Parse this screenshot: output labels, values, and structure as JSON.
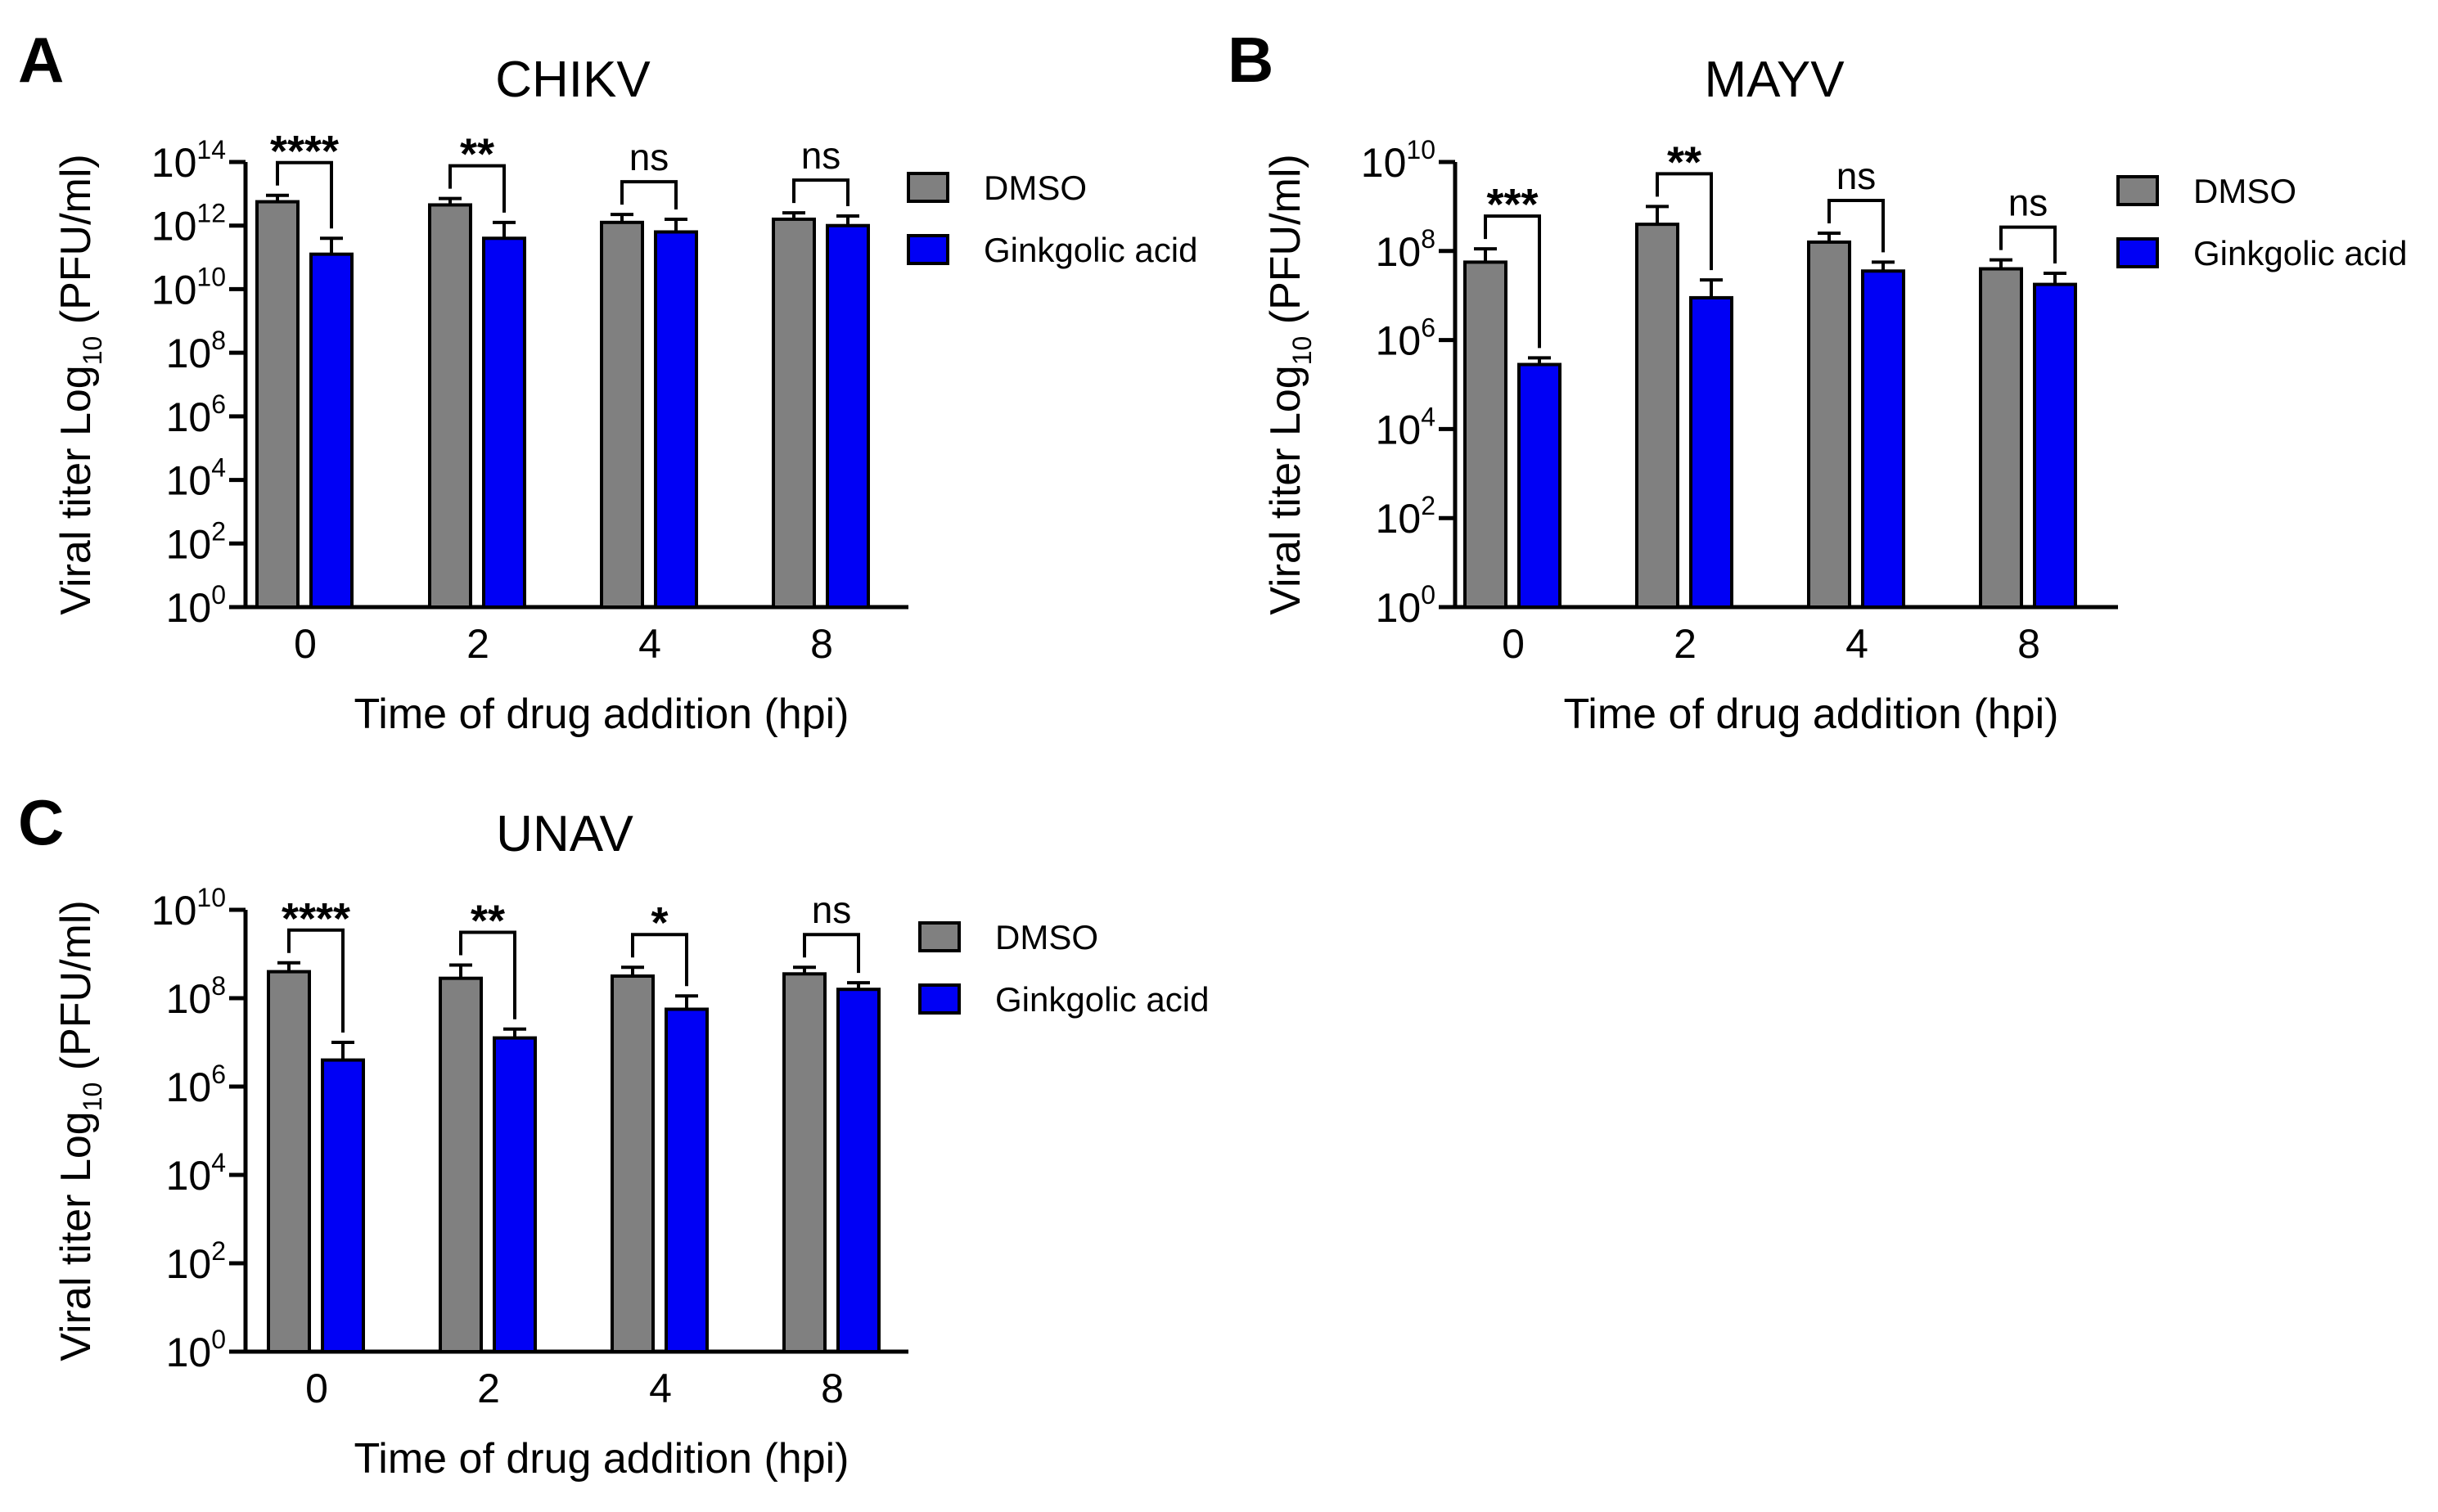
{
  "colors": {
    "dmso": "#808080",
    "ginkgolic": "#0000f5",
    "axis": "#000000"
  },
  "legend": {
    "dmso": "DMSO",
    "ginkgolic": "Ginkgolic acid"
  },
  "chart_data": [
    {
      "panel": "A",
      "title": "CHIKV",
      "type": "bar",
      "xlabel": "Time of drug addition (hpi)",
      "ylabel_main": "Viral titer Log",
      "ylabel_sub": "10",
      "ylabel_unit": " (PFU/ml)",
      "yscale": "log10",
      "ylim_exp": [
        0,
        14
      ],
      "yticks_exp": [
        0,
        2,
        4,
        6,
        8,
        10,
        12,
        14
      ],
      "categories": [
        "0",
        "2",
        "4",
        "8"
      ],
      "series": [
        {
          "name": "DMSO",
          "log_values": [
            12.75,
            12.65,
            12.1,
            12.2
          ],
          "log_err": [
            0.2,
            0.2,
            0.25,
            0.2
          ]
        },
        {
          "name": "Ginkgolic acid",
          "log_values": [
            11.1,
            11.6,
            11.8,
            12.0
          ],
          "log_err": [
            0.5,
            0.5,
            0.4,
            0.3
          ]
        }
      ],
      "significance": [
        "****",
        "**",
        "ns",
        "ns"
      ]
    },
    {
      "panel": "B",
      "title": "MAYV",
      "type": "bar",
      "xlabel": "Time of drug addition (hpi)",
      "ylabel_main": "Viral titer Log",
      "ylabel_sub": "10",
      "ylabel_unit": " (PFU/ml)",
      "yscale": "log10",
      "ylim_exp": [
        0,
        10
      ],
      "yticks_exp": [
        0,
        2,
        4,
        6,
        8,
        10
      ],
      "categories": [
        "0",
        "2",
        "4",
        "8"
      ],
      "series": [
        {
          "name": "DMSO",
          "log_values": [
            7.75,
            8.6,
            8.2,
            7.6
          ],
          "log_err": [
            0.3,
            0.4,
            0.2,
            0.2
          ]
        },
        {
          "name": "Ginkgolic acid",
          "log_values": [
            5.45,
            6.95,
            7.55,
            7.25
          ],
          "log_err": [
            0.15,
            0.4,
            0.2,
            0.25
          ]
        }
      ],
      "significance": [
        "***",
        "**",
        "ns",
        "ns"
      ]
    },
    {
      "panel": "C",
      "title": "UNAV",
      "type": "bar",
      "xlabel": "Time of drug addition (hpi)",
      "ylabel_main": "Viral titer Log",
      "ylabel_sub": "10",
      "ylabel_unit": " (PFU/ml)",
      "yscale": "log10",
      "ylim_exp": [
        0,
        10
      ],
      "yticks_exp": [
        0,
        2,
        4,
        6,
        8,
        10
      ],
      "categories": [
        "0",
        "2",
        "4",
        "8"
      ],
      "series": [
        {
          "name": "DMSO",
          "log_values": [
            8.6,
            8.45,
            8.5,
            8.55
          ],
          "log_err": [
            0.2,
            0.3,
            0.2,
            0.15
          ]
        },
        {
          "name": "Ginkgolic acid",
          "log_values": [
            6.6,
            7.1,
            7.75,
            8.2
          ],
          "log_err": [
            0.4,
            0.2,
            0.3,
            0.15
          ]
        }
      ],
      "significance": [
        "****",
        "**",
        "*",
        "ns"
      ]
    }
  ]
}
